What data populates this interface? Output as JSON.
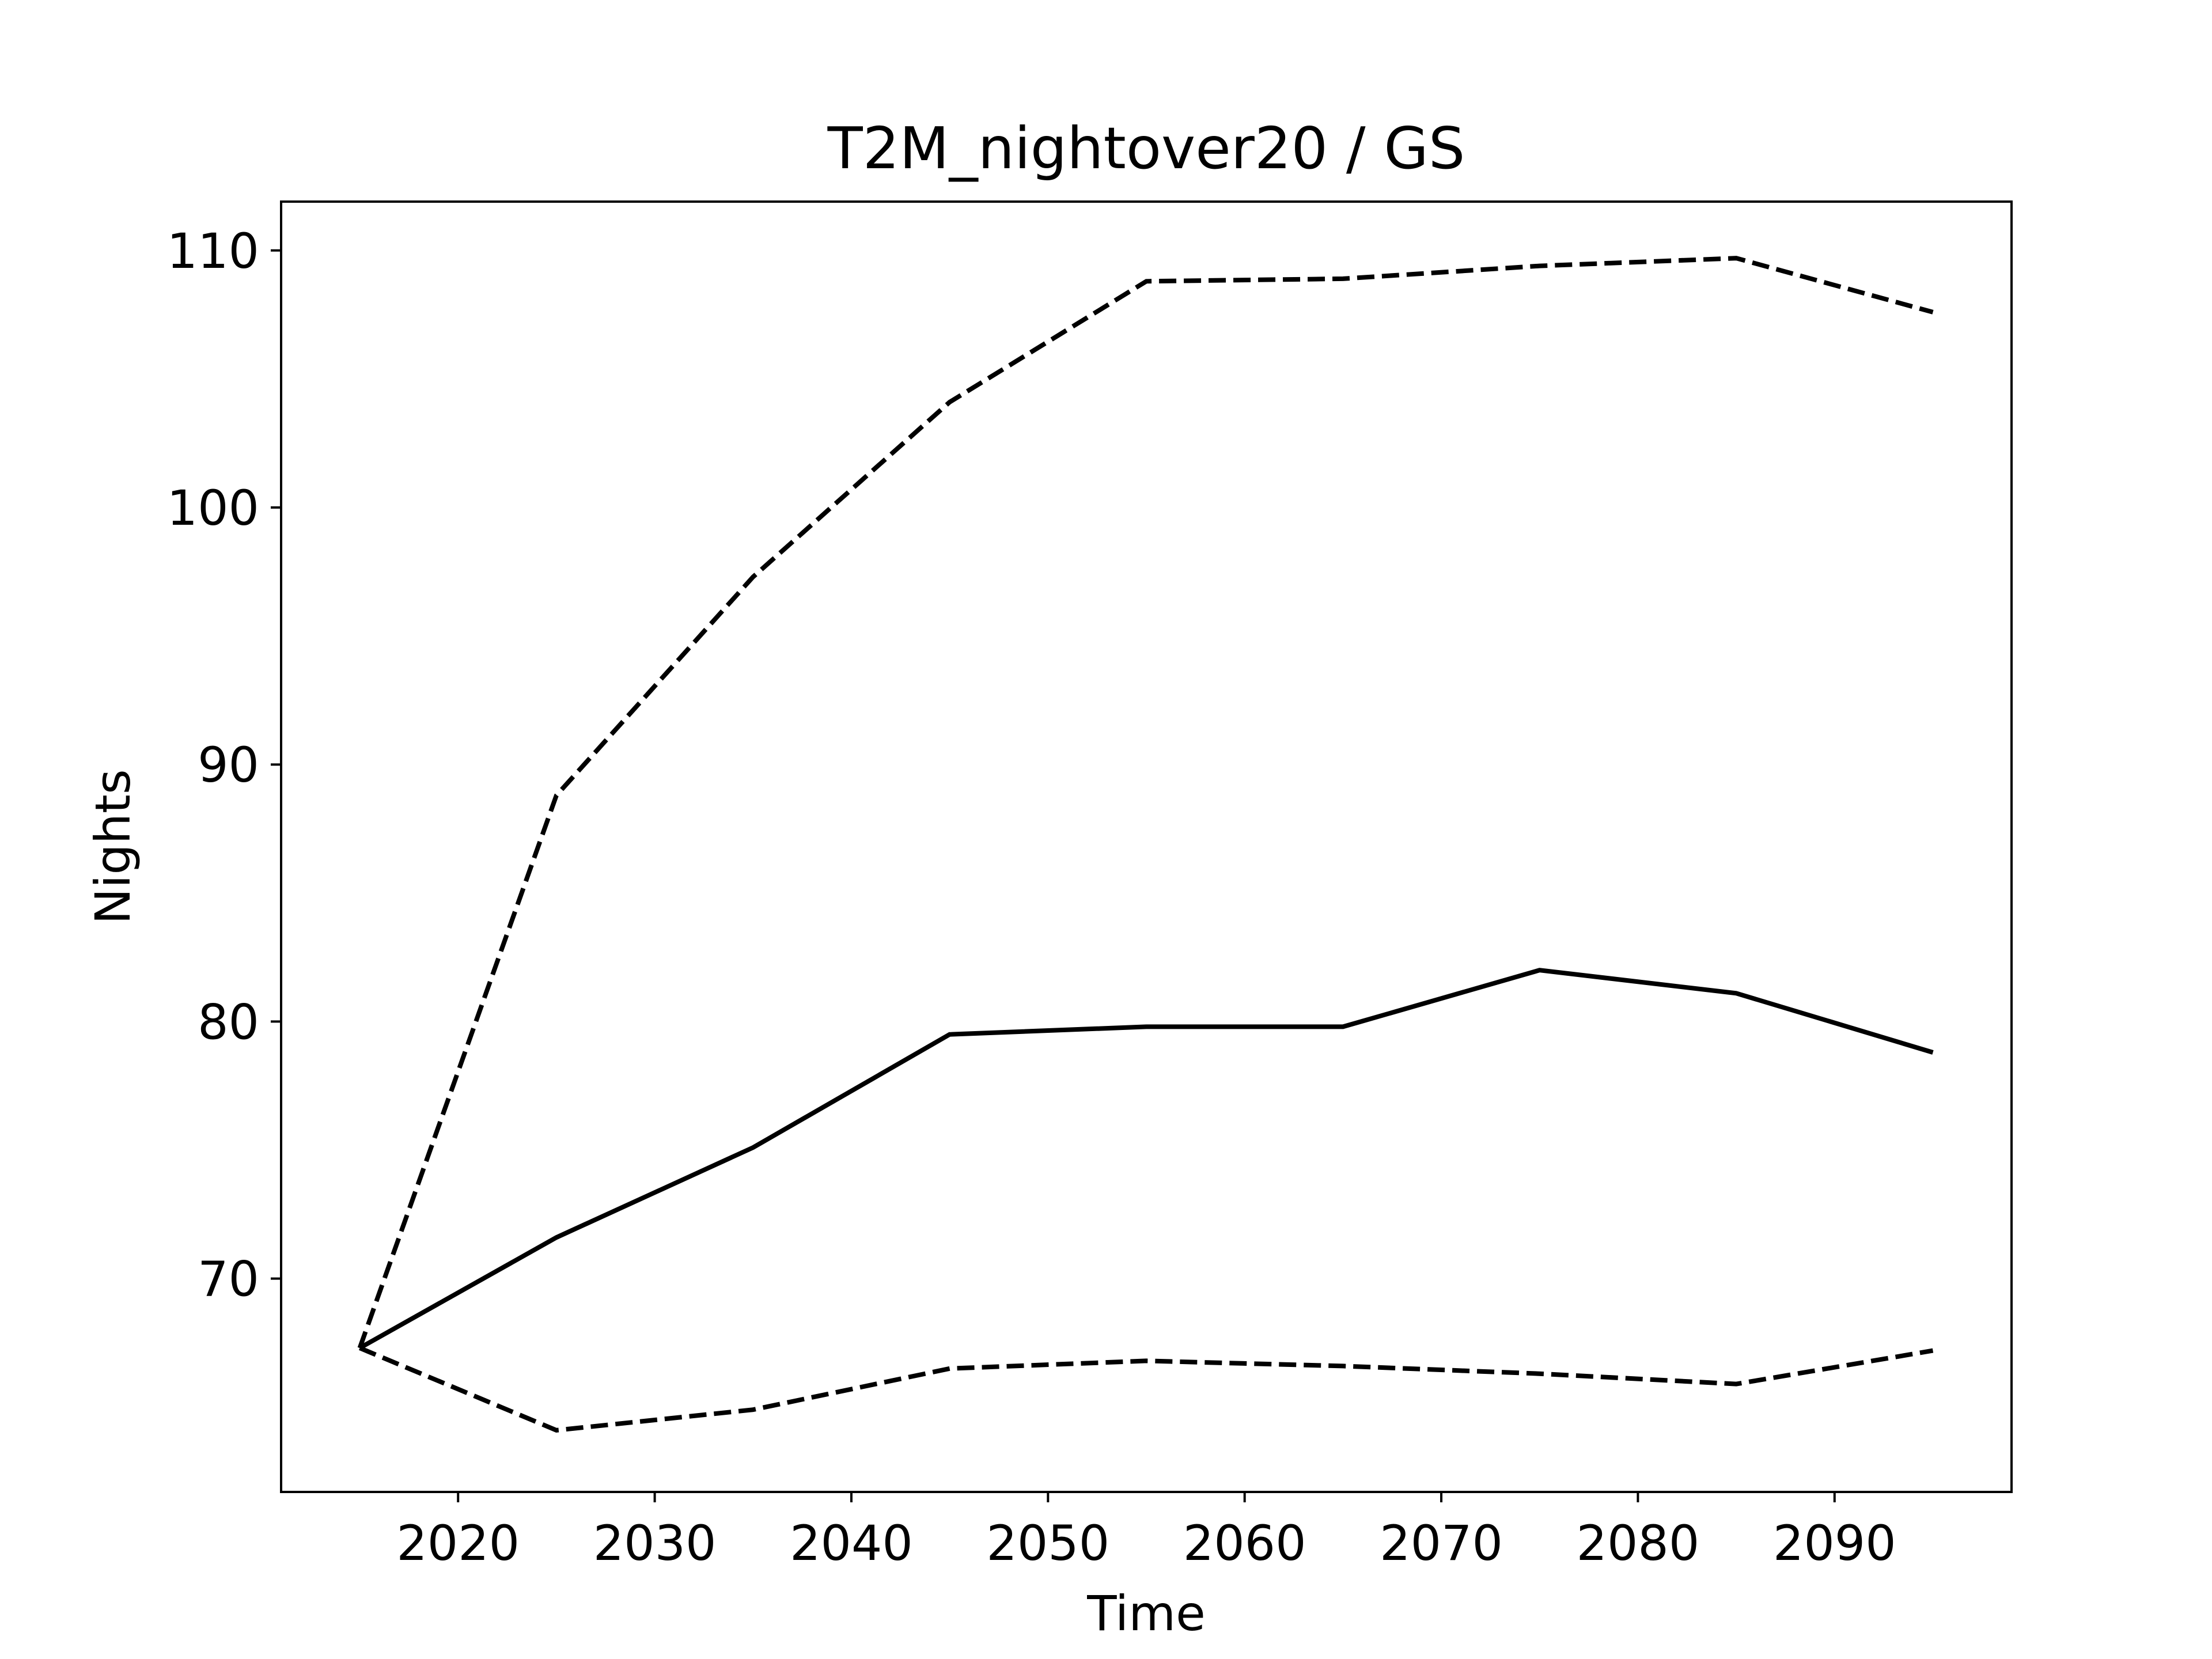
{
  "chart_data": {
    "type": "line",
    "title": "T2M_nightover20 / GS",
    "xlabel": "Time",
    "ylabel": "Nights",
    "xlim": [
      2011,
      2099
    ],
    "ylim": [
      61.7,
      111.9
    ],
    "xticks": [
      2020,
      2030,
      2040,
      2050,
      2060,
      2070,
      2080,
      2090
    ],
    "yticks": [
      70,
      80,
      90,
      100,
      110
    ],
    "grid": false,
    "x": [
      2015,
      2025,
      2035,
      2045,
      2055,
      2065,
      2075,
      2085,
      2095
    ],
    "series": [
      {
        "style": "dashed",
        "color": "#000000",
        "values": [
          67.3,
          88.8,
          97.3,
          104.1,
          108.8,
          108.9,
          109.4,
          109.7,
          107.6
        ]
      },
      {
        "style": "solid",
        "color": "#000000",
        "values": [
          67.3,
          71.6,
          75.1,
          79.5,
          79.8,
          79.8,
          82.0,
          81.1,
          78.8
        ]
      },
      {
        "style": "dashed",
        "color": "#000000",
        "values": [
          67.3,
          64.1,
          64.9,
          66.5,
          66.8,
          66.6,
          66.3,
          65.9,
          67.2
        ]
      }
    ]
  }
}
